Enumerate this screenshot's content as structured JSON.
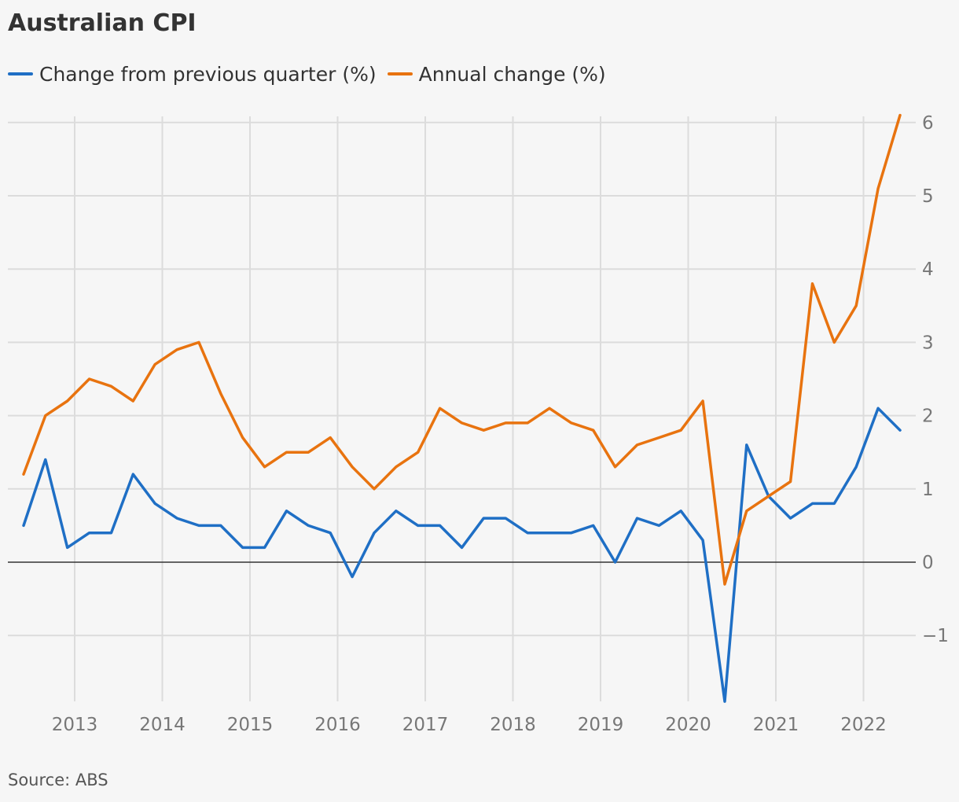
{
  "chart_data": {
    "type": "line",
    "title": "Australian CPI",
    "source": "Source: ABS",
    "x_tick_labels": [
      "2013",
      "2014",
      "2015",
      "2016",
      "2017",
      "2018",
      "2019",
      "2020",
      "2021",
      "2022"
    ],
    "y_tick_labels": [
      "−1",
      "0",
      "1",
      "2",
      "3",
      "4",
      "5",
      "6"
    ],
    "ylim": [
      -1.9,
      6.1
    ],
    "grid": true,
    "legend_position": "top-left",
    "x_start": "2012-06",
    "x_step": "quarter",
    "series": [
      {
        "name": "Change from previous quarter (%)",
        "color": "#1f6fc5",
        "values": [
          0.5,
          1.4,
          0.2,
          0.4,
          0.4,
          1.2,
          0.8,
          0.6,
          0.5,
          0.5,
          0.2,
          0.2,
          0.7,
          0.5,
          0.4,
          -0.2,
          0.4,
          0.7,
          0.5,
          0.5,
          0.2,
          0.6,
          0.6,
          0.4,
          0.4,
          0.4,
          0.5,
          0.0,
          0.6,
          0.5,
          0.7,
          0.3,
          -1.9,
          1.6,
          0.9,
          0.6,
          0.8,
          0.8,
          1.3,
          2.1,
          1.8
        ]
      },
      {
        "name": "Annual change (%)",
        "color": "#e8730f",
        "values": [
          1.2,
          2.0,
          2.2,
          2.5,
          2.4,
          2.2,
          2.7,
          2.9,
          3.0,
          2.3,
          1.7,
          1.3,
          1.5,
          1.5,
          1.7,
          1.3,
          1.0,
          1.3,
          1.5,
          2.1,
          1.9,
          1.8,
          1.9,
          1.9,
          2.1,
          1.9,
          1.8,
          1.3,
          1.6,
          1.7,
          1.8,
          2.2,
          -0.3,
          0.7,
          0.9,
          1.1,
          3.8,
          3.0,
          3.5,
          5.1,
          6.1
        ]
      }
    ]
  }
}
